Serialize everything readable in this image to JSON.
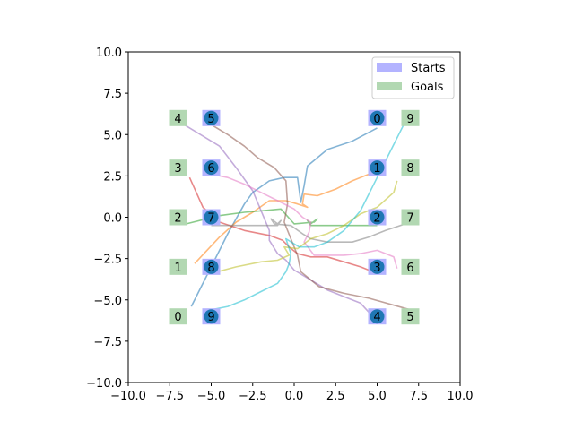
{
  "chart_data": {
    "type": "scatter",
    "title": "",
    "xlabel": "",
    "ylabel": "",
    "xlim": [
      -10,
      10
    ],
    "ylim": [
      -10,
      10
    ],
    "xticks": [
      "−10.0",
      "−7.5",
      "−5.0",
      "−2.5",
      "0.0",
      "2.5",
      "5.0",
      "7.5",
      "10.0"
    ],
    "yticks": [
      "−10.0",
      "−7.5",
      "−5.0",
      "−2.5",
      "0.0",
      "2.5",
      "5.0",
      "7.5",
      "10.0"
    ],
    "grid": false,
    "legend": {
      "placement": "top-right",
      "entries": [
        {
          "label": "Starts",
          "color": "#b3b3ff"
        },
        {
          "label": "Goals",
          "color": "#b2d8b2"
        }
      ]
    },
    "starts": [
      {
        "id": "0",
        "x": 5,
        "y": 6
      },
      {
        "id": "1",
        "x": 5,
        "y": 3
      },
      {
        "id": "2",
        "x": 5,
        "y": 0
      },
      {
        "id": "3",
        "x": 5,
        "y": -3
      },
      {
        "id": "4",
        "x": 5,
        "y": -6
      },
      {
        "id": "5",
        "x": -5,
        "y": 6
      },
      {
        "id": "6",
        "x": -5,
        "y": 3
      },
      {
        "id": "7",
        "x": -5,
        "y": 0
      },
      {
        "id": "8",
        "x": -5,
        "y": -3
      },
      {
        "id": "9",
        "x": -5,
        "y": -6
      }
    ],
    "goals": [
      {
        "id": "0",
        "x": -7,
        "y": -6
      },
      {
        "id": "1",
        "x": -7,
        "y": -3
      },
      {
        "id": "2",
        "x": -7,
        "y": 0
      },
      {
        "id": "3",
        "x": -7,
        "y": 3
      },
      {
        "id": "4",
        "x": -7,
        "y": 6
      },
      {
        "id": "5",
        "x": 7,
        "y": -6
      },
      {
        "id": "6",
        "x": 7,
        "y": -3
      },
      {
        "id": "7",
        "x": 7,
        "y": 0
      },
      {
        "id": "8",
        "x": 7,
        "y": 3
      },
      {
        "id": "9",
        "x": 7,
        "y": 6
      }
    ],
    "trajectories": [
      {
        "agent": "0",
        "color": "#1f77b4",
        "points": [
          [
            5,
            5.4
          ],
          [
            3.5,
            4.6
          ],
          [
            2,
            4.1
          ],
          [
            0.8,
            3.1
          ],
          [
            0.6,
            1.9
          ],
          [
            0.4,
            0.9
          ],
          [
            0.2,
            2.4
          ],
          [
            -0.6,
            2.4
          ],
          [
            -1.5,
            2.2
          ],
          [
            -2.5,
            1.5
          ],
          [
            -3,
            0.8
          ],
          [
            -4,
            -1
          ],
          [
            -5,
            -3
          ],
          [
            -6.2,
            -5.4
          ]
        ]
      },
      {
        "agent": "1",
        "color": "#ff7f0e",
        "points": [
          [
            5,
            2.8
          ],
          [
            3.5,
            2.2
          ],
          [
            2.5,
            1.7
          ],
          [
            1.4,
            1.3
          ],
          [
            0.6,
            1.4
          ],
          [
            0.5,
            0.8
          ],
          [
            0.8,
            0.6
          ],
          [
            0.2,
            0.8
          ],
          [
            -0.5,
            1
          ],
          [
            -1.5,
            1
          ],
          [
            -2.5,
            0.3
          ],
          [
            -3.5,
            -0.3
          ],
          [
            -4.5,
            -1.2
          ],
          [
            -6,
            -2.8
          ]
        ]
      },
      {
        "agent": "2",
        "color": "#2ca02c",
        "points": [
          [
            5,
            -0.5
          ],
          [
            3.5,
            -0.5
          ],
          [
            2,
            -0.5
          ],
          [
            1,
            -0.5
          ],
          [
            0.8,
            -0.2
          ],
          [
            1,
            -0.4
          ],
          [
            1.4,
            -0.1
          ],
          [
            1.2,
            -0.3
          ],
          [
            0,
            -0.4
          ],
          [
            -0.8,
            0.5
          ],
          [
            -1.8,
            0.4
          ],
          [
            -3,
            0.3
          ],
          [
            -4.5,
            0.1
          ],
          [
            -6.5,
            -0.4
          ]
        ]
      },
      {
        "agent": "3",
        "color": "#d62728",
        "points": [
          [
            5,
            -3.4
          ],
          [
            4,
            -3
          ],
          [
            3,
            -2.7
          ],
          [
            2,
            -2.4
          ],
          [
            1,
            -2.4
          ],
          [
            0.2,
            -2.2
          ],
          [
            -0.3,
            -1.8
          ],
          [
            -0.7,
            -1.4
          ],
          [
            -1.5,
            -1.1
          ],
          [
            -3,
            -0.8
          ],
          [
            -4.5,
            -0.3
          ],
          [
            -5.5,
            0.6
          ],
          [
            -6.3,
            2.4
          ]
        ]
      },
      {
        "agent": "4",
        "color": "#9467bd",
        "points": [
          [
            5,
            -6.3
          ],
          [
            4,
            -5.2
          ],
          [
            3,
            -4.8
          ],
          [
            2,
            -4.4
          ],
          [
            1,
            -3.8
          ],
          [
            0,
            -3.2
          ],
          [
            -0.5,
            -2.6
          ],
          [
            -1,
            -2.2
          ],
          [
            -1.5,
            -1.4
          ],
          [
            -1.5,
            -0.8
          ],
          [
            -2,
            0.4
          ],
          [
            -2.5,
            1.6
          ],
          [
            -3.5,
            3
          ],
          [
            -4.5,
            4.3
          ],
          [
            -6.8,
            5.7
          ]
        ]
      },
      {
        "agent": "5",
        "color": "#8c564b",
        "points": [
          [
            -5,
            5.6
          ],
          [
            -4,
            5
          ],
          [
            -3,
            4.3
          ],
          [
            -2.2,
            3.6
          ],
          [
            -1.2,
            3
          ],
          [
            -0.5,
            2.2
          ],
          [
            -0.4,
            0.8
          ],
          [
            -0.6,
            -0.3
          ],
          [
            -0.2,
            -1.3
          ],
          [
            0.2,
            -2.3
          ],
          [
            0.4,
            -3.3
          ],
          [
            1.5,
            -4.2
          ],
          [
            3,
            -4.6
          ],
          [
            4.5,
            -4.9
          ],
          [
            7,
            -5.6
          ]
        ]
      },
      {
        "agent": "6",
        "color": "#e377c2",
        "points": [
          [
            -5,
            2.6
          ],
          [
            -4,
            2.4
          ],
          [
            -3,
            2
          ],
          [
            -2,
            1.5
          ],
          [
            -1,
            1
          ],
          [
            0,
            0.5
          ],
          [
            0.5,
            0
          ],
          [
            1,
            -0.3
          ],
          [
            0.9,
            -0.9
          ],
          [
            0.6,
            -1.5
          ],
          [
            1.2,
            -2.3
          ],
          [
            2,
            -2.3
          ],
          [
            3,
            -2.3
          ],
          [
            4,
            -2.2
          ],
          [
            5,
            -2
          ],
          [
            6,
            -2.4
          ],
          [
            6.2,
            -3.1
          ]
        ]
      },
      {
        "agent": "7",
        "color": "#7f7f7f",
        "points": [
          [
            -5,
            -0.5
          ],
          [
            -3.5,
            -0.5
          ],
          [
            -2,
            -0.5
          ],
          [
            -1,
            -0.5
          ],
          [
            -0.8,
            -0.2
          ],
          [
            -1,
            -0.4
          ],
          [
            -1.4,
            -0.1
          ],
          [
            -1.2,
            -0.4
          ],
          [
            -0.2,
            -0.5
          ],
          [
            0.5,
            -1
          ],
          [
            1,
            -1.3
          ],
          [
            2,
            -1.5
          ],
          [
            3.5,
            -1.5
          ],
          [
            4.5,
            -1.2
          ],
          [
            5.5,
            -0.8
          ],
          [
            6.7,
            -0.4
          ]
        ]
      },
      {
        "agent": "8",
        "color": "#bcbd22",
        "points": [
          [
            -5,
            -3.4
          ],
          [
            -3.5,
            -3
          ],
          [
            -2,
            -2.7
          ],
          [
            -1,
            -2.6
          ],
          [
            -0.3,
            -2.3
          ],
          [
            -0.6,
            -1.8
          ],
          [
            0.2,
            -1.9
          ],
          [
            1,
            -1.3
          ],
          [
            2,
            -1
          ],
          [
            3,
            -0.5
          ],
          [
            4,
            0.2
          ],
          [
            5,
            0.6
          ],
          [
            6,
            1.5
          ],
          [
            6.2,
            2.2
          ]
        ]
      },
      {
        "agent": "9",
        "color": "#17becf",
        "points": [
          [
            -5,
            -5.6
          ],
          [
            -4,
            -5.4
          ],
          [
            -3,
            -5
          ],
          [
            -2,
            -4.5
          ],
          [
            -1,
            -4
          ],
          [
            -0.5,
            -3.3
          ],
          [
            -0.3,
            -2.8
          ],
          [
            -0.2,
            -2.2
          ],
          [
            -0.5,
            -1.3
          ],
          [
            0.3,
            -1.8
          ],
          [
            1.2,
            -1.8
          ],
          [
            2,
            -1.5
          ],
          [
            3,
            -0.8
          ],
          [
            4,
            0.4
          ],
          [
            5,
            2.4
          ],
          [
            5.6,
            3.6
          ],
          [
            6.8,
            6
          ]
        ]
      }
    ]
  }
}
